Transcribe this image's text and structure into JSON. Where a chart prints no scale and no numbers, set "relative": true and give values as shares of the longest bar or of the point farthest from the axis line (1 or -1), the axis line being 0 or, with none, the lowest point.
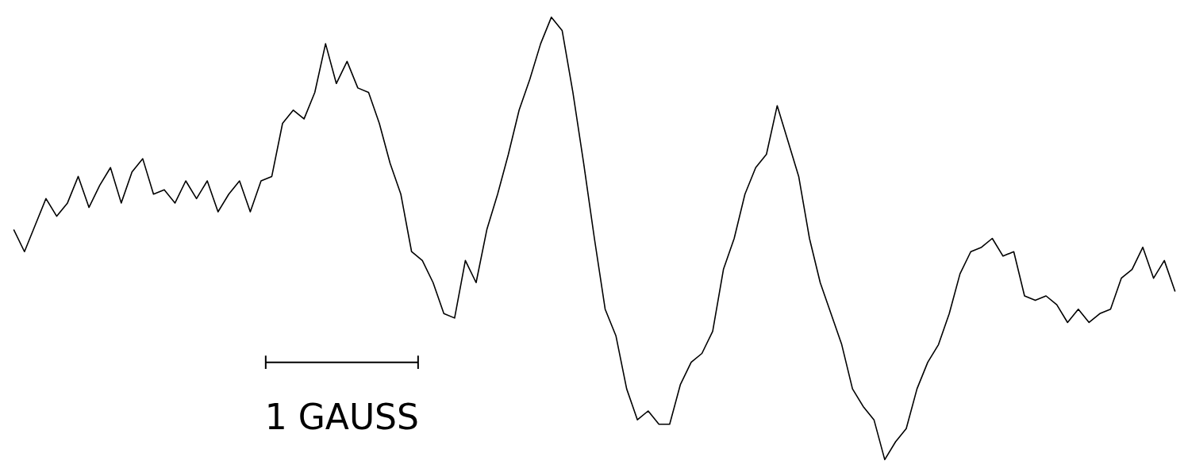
{
  "chart_data": {
    "type": "line",
    "relative": true,
    "color": "#000000",
    "categories": [
      null,
      null,
      null,
      null,
      null,
      null,
      null,
      null,
      null,
      null,
      null,
      null,
      null,
      null,
      null,
      null,
      null,
      null,
      null,
      null,
      null,
      null,
      null,
      null,
      null,
      null,
      null,
      null,
      null,
      null,
      null,
      null,
      null,
      null,
      null,
      null,
      null,
      null,
      null,
      null,
      null,
      null,
      null,
      null,
      null,
      null,
      null,
      null,
      null,
      null,
      null,
      null,
      null,
      null,
      null,
      null,
      null,
      null,
      null,
      null,
      null,
      null,
      null,
      null,
      null,
      null,
      null,
      null,
      null,
      null,
      null,
      null,
      null,
      null,
      null,
      null,
      null,
      null,
      null,
      null,
      null,
      null,
      null,
      null,
      null,
      null,
      null,
      null,
      null,
      null,
      null,
      null,
      null,
      null,
      null,
      null,
      null,
      null,
      null,
      null,
      null,
      null,
      null,
      null,
      null,
      null,
      null,
      null,
      null
    ],
    "values": [
      0.52,
      0.47,
      0.53,
      0.59,
      0.55,
      0.58,
      0.64,
      0.57,
      0.62,
      0.66,
      0.58,
      0.65,
      0.68,
      0.6,
      0.61,
      0.58,
      0.63,
      0.59,
      0.63,
      0.56,
      0.6,
      0.63,
      0.56,
      0.63,
      0.64,
      0.76,
      0.79,
      0.77,
      0.83,
      0.94,
      0.85,
      0.9,
      0.84,
      0.83,
      0.76,
      0.67,
      0.6,
      0.47,
      0.45,
      0.4,
      0.33,
      0.32,
      0.45,
      0.4,
      0.52,
      0.6,
      0.69,
      0.79,
      0.86,
      0.94,
      1.0,
      0.97,
      0.83,
      0.67,
      0.5,
      0.34,
      0.28,
      0.16,
      0.09,
      0.11,
      0.08,
      0.08,
      0.17,
      0.22,
      0.24,
      0.29,
      0.43,
      0.5,
      0.6,
      0.66,
      0.69,
      0.8,
      0.72,
      0.64,
      0.5,
      0.4,
      0.33,
      0.26,
      0.16,
      0.12,
      0.09,
      0.0,
      0.04,
      0.07,
      0.16,
      0.22,
      0.26,
      0.33,
      0.42,
      0.47,
      0.48,
      0.5,
      0.46,
      0.47,
      0.37,
      0.36,
      0.37,
      0.35,
      0.31,
      0.34,
      0.31,
      0.33,
      0.34,
      0.41,
      0.43,
      0.48,
      0.41,
      0.45,
      0.38
    ],
    "annotations": [
      "1 GAUSS"
    ]
  }
}
